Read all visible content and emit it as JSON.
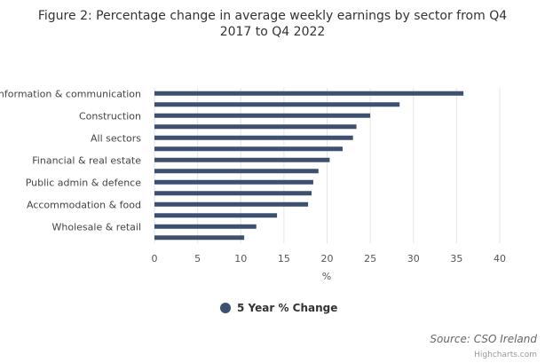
{
  "chart_data": {
    "type": "bar",
    "orientation": "horizontal",
    "title": "Figure 2: Percentage change in average weekly earnings by sector from Q4 2017 to Q4 2022",
    "title_lines": [
      "Figure 2: Percentage change in average weekly earnings by sector from Q4",
      "2017 to Q4 2022"
    ],
    "categories": [
      "Information & communication",
      "",
      "Construction",
      "",
      "All sectors",
      "",
      "Financial & real estate",
      "",
      "Public admin & defence",
      "",
      "Accommodation & food",
      "",
      "Wholesale & retail",
      ""
    ],
    "series": [
      {
        "name": "5 Year % Change",
        "color": "#3d5070",
        "values": [
          35.8,
          28.4,
          25.0,
          23.4,
          23.0,
          21.8,
          20.3,
          19.0,
          18.4,
          18.2,
          17.8,
          14.2,
          11.8,
          10.4
        ]
      }
    ],
    "xlabel": "%",
    "ylabel": "",
    "xlim": [
      0,
      40
    ],
    "ticks": [
      "0",
      "5",
      "10",
      "15",
      "20",
      "25",
      "30",
      "35",
      "40"
    ],
    "tick_values": [
      0,
      5,
      10,
      15,
      20,
      25,
      30,
      35,
      40
    ],
    "grid": true,
    "legend_position": "bottom-center",
    "source": "Source: CSO Ireland",
    "credit": "Highcharts.com"
  }
}
